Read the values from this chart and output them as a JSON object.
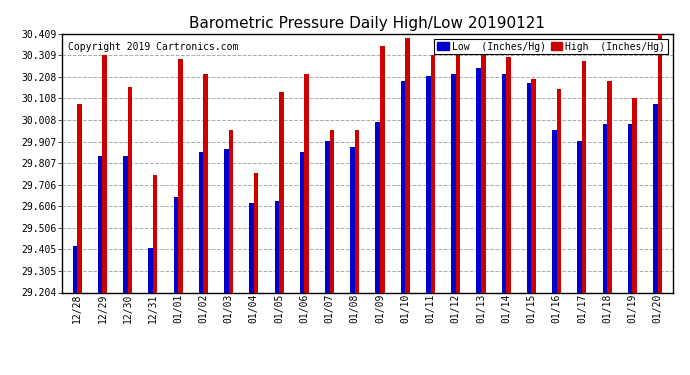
{
  "title": "Barometric Pressure Daily High/Low 20190121",
  "copyright": "Copyright 2019 Cartronics.com",
  "legend_low": "Low  (Inches/Hg)",
  "legend_high": "High  (Inches/Hg)",
  "categories": [
    "12/28",
    "12/29",
    "12/30",
    "12/31",
    "01/01",
    "01/02",
    "01/03",
    "01/04",
    "01/05",
    "01/06",
    "01/07",
    "01/08",
    "01/09",
    "01/10",
    "01/11",
    "01/12",
    "01/13",
    "01/14",
    "01/15",
    "01/16",
    "01/17",
    "01/18",
    "01/19",
    "01/20"
  ],
  "low_values": [
    29.42,
    29.84,
    29.84,
    29.41,
    29.65,
    29.86,
    29.87,
    29.62,
    29.63,
    29.86,
    29.91,
    29.88,
    30.0,
    30.19,
    30.21,
    30.22,
    30.25,
    30.22,
    30.18,
    29.96,
    29.91,
    29.99,
    29.99,
    30.08
  ],
  "high_values": [
    30.08,
    30.31,
    30.16,
    29.75,
    30.29,
    30.22,
    29.96,
    29.76,
    30.14,
    30.22,
    29.96,
    29.96,
    30.35,
    30.39,
    30.31,
    30.31,
    30.36,
    30.3,
    30.2,
    30.15,
    30.28,
    30.19,
    30.11,
    30.41
  ],
  "ylim_min": 29.204,
  "ylim_max": 30.409,
  "yticks": [
    29.204,
    29.305,
    29.405,
    29.506,
    29.606,
    29.706,
    29.807,
    29.907,
    30.008,
    30.108,
    30.208,
    30.309,
    30.409
  ],
  "ytick_labels": [
    "29.204",
    "29.305",
    "29.405",
    "29.506",
    "29.606",
    "29.706",
    "29.807",
    "29.907",
    "30.008",
    "30.108",
    "30.208",
    "30.309",
    "30.409"
  ],
  "low_color": "#0000cc",
  "high_color": "#cc0000",
  "bg_color": "#ffffff",
  "grid_color": "#aaaaaa",
  "title_fontsize": 11,
  "copyright_fontsize": 7,
  "bar_width": 0.18
}
